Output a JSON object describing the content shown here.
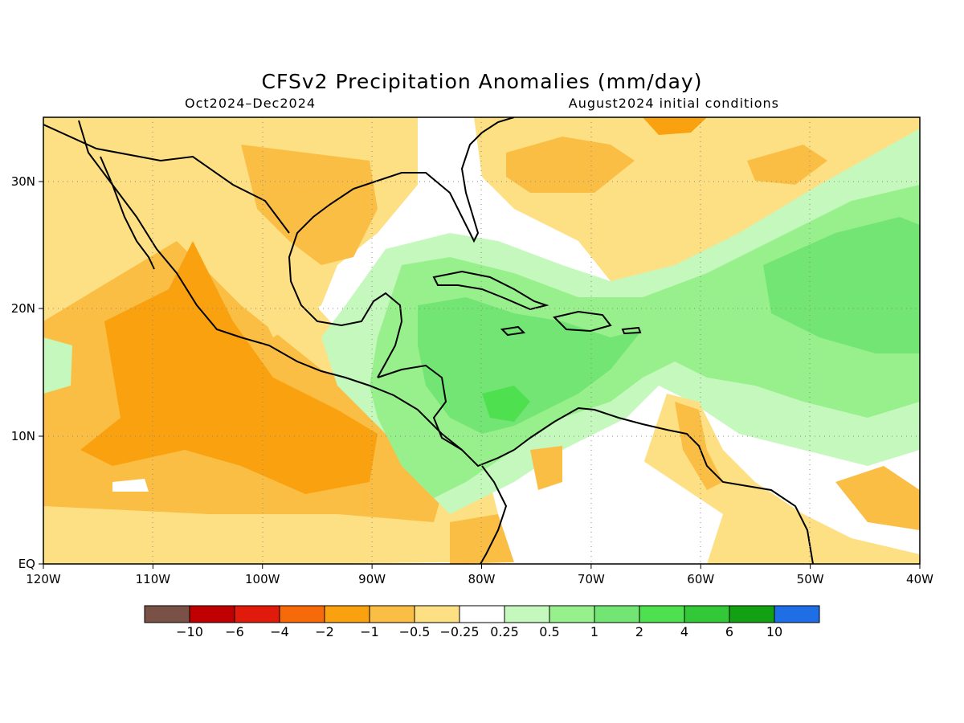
{
  "title": "CFSv2 Precipitation Anomalies (mm/day)",
  "period": "Oct2024–Dec2024",
  "initial_conditions": "August2024 initial conditions",
  "axes": {
    "lon_labels": [
      "120W",
      "110W",
      "100W",
      "90W",
      "80W",
      "70W",
      "60W",
      "50W",
      "40W"
    ],
    "lat_labels": [
      "EQ",
      "10N",
      "20N",
      "30N"
    ]
  },
  "colorbar": {
    "labels": [
      "−10",
      "−6",
      "−4",
      "−2",
      "−1",
      "−0.5",
      "−0.25",
      "0.25",
      "0.5",
      "1",
      "2",
      "4",
      "6",
      "10"
    ],
    "colors": [
      "#7a5146",
      "#c00000",
      "#e01b0c",
      "#f76a0a",
      "#f9a10e",
      "#fbbe44",
      "#fde084",
      "#ffffff",
      "#c5f8bd",
      "#98f08c",
      "#73e574",
      "#4fe050",
      "#33c838",
      "#13a114",
      "#1e6ee6"
    ]
  },
  "chart_data": {
    "type": "heatmap",
    "variable": "Precipitation Anomalies",
    "units": "mm/day",
    "region": {
      "lon_range": [
        -120,
        -40
      ],
      "lat_range": [
        0,
        35
      ]
    },
    "forecast_period": "Oct2024–Dec2024",
    "initialization": "August2024",
    "levels": [
      -10,
      -6,
      -4,
      -2,
      -1,
      -0.5,
      -0.25,
      0.25,
      0.5,
      1,
      2,
      4,
      6,
      10
    ],
    "grid": "dotted",
    "features": [
      {
        "area": "Eastern Pacific off Mexico",
        "anomaly_range": [
          -2,
          -1
        ]
      },
      {
        "area": "Gulf of Mexico / US Gulf Coast",
        "anomaly_range": [
          -1,
          -0.25
        ]
      },
      {
        "area": "Caribbean Sea",
        "anomaly_range": [
          1,
          4
        ]
      },
      {
        "area": "Central Atlantic",
        "anomaly_range": [
          0.5,
          2
        ]
      },
      {
        "area": "Western Atlantic near 30N",
        "anomaly_range": [
          -1,
          -0.25
        ]
      },
      {
        "area": "Northeast South America coast",
        "anomaly_range": [
          -1,
          -0.25
        ]
      }
    ]
  }
}
